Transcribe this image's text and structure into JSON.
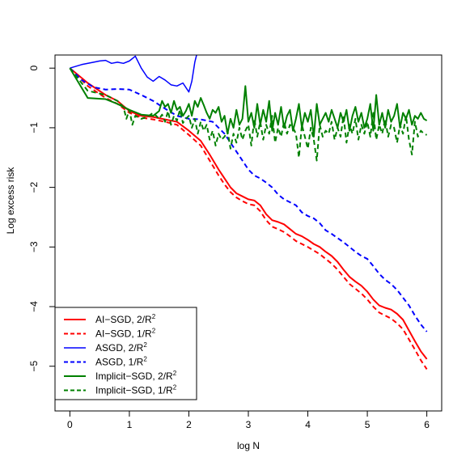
{
  "chart_data": {
    "type": "line",
    "title": "",
    "xlabel": "log N",
    "ylabel": "Log excess risk",
    "xlim": [
      -0.25,
      6.25
    ],
    "ylim": [
      -5.75,
      0.22
    ],
    "xticks": [
      0,
      1,
      2,
      3,
      4,
      5,
      6
    ],
    "xtick_labels": [
      "0",
      "1",
      "2",
      "3",
      "4",
      "5",
      "6"
    ],
    "yticks": [
      0,
      -1,
      -2,
      -3,
      -4,
      -5
    ],
    "ytick_labels": [
      "0",
      "−1",
      "−2",
      "−3",
      "−4",
      "−5"
    ],
    "grid": false,
    "legend_position": "bottom-left",
    "series": [
      {
        "name": "AI−SGD, 2/R",
        "name_sup": "2",
        "color": "#ff0000",
        "dash": "solid",
        "width": 2,
        "x": [
          0,
          0.3,
          0.6,
          0.8,
          1.0,
          1.2,
          1.4,
          1.6,
          1.8,
          2.0,
          2.2,
          2.35,
          2.5,
          2.6,
          2.7,
          2.8,
          2.9,
          3.0,
          3.1,
          3.2,
          3.3,
          3.4,
          3.5,
          3.6,
          3.7,
          3.8,
          3.9,
          4.0,
          4.1,
          4.2,
          4.3,
          4.4,
          4.5,
          4.6,
          4.7,
          4.8,
          4.9,
          5.0,
          5.1,
          5.2,
          5.3,
          5.4,
          5.5,
          5.6,
          5.7,
          5.8,
          5.9,
          6.0
        ],
        "y": [
          0,
          -0.25,
          -0.45,
          -0.55,
          -0.72,
          -0.8,
          -0.82,
          -0.86,
          -0.9,
          -1.05,
          -1.22,
          -1.45,
          -1.7,
          -1.85,
          -2.0,
          -2.1,
          -2.15,
          -2.2,
          -2.22,
          -2.3,
          -2.45,
          -2.55,
          -2.58,
          -2.62,
          -2.7,
          -2.78,
          -2.82,
          -2.88,
          -2.95,
          -3.0,
          -3.08,
          -3.15,
          -3.25,
          -3.38,
          -3.5,
          -3.58,
          -3.65,
          -3.75,
          -3.88,
          -3.98,
          -4.02,
          -4.05,
          -4.12,
          -4.22,
          -4.4,
          -4.58,
          -4.75,
          -4.88
        ]
      },
      {
        "name": "AI−SGD, 1/R",
        "name_sup": "2",
        "color": "#ff0000",
        "dash": "dashed",
        "width": 2,
        "x": [
          0,
          0.3,
          0.6,
          0.8,
          1.0,
          1.2,
          1.4,
          1.6,
          1.8,
          2.0,
          2.2,
          2.35,
          2.5,
          2.6,
          2.7,
          2.8,
          2.9,
          3.0,
          3.1,
          3.2,
          3.3,
          3.4,
          3.5,
          3.6,
          3.7,
          3.8,
          3.9,
          4.0,
          4.1,
          4.2,
          4.3,
          4.4,
          4.5,
          4.6,
          4.7,
          4.8,
          4.9,
          5.0,
          5.1,
          5.2,
          5.3,
          5.4,
          5.5,
          5.6,
          5.7,
          5.8,
          5.9,
          6.0
        ],
        "y": [
          0,
          -0.3,
          -0.5,
          -0.6,
          -0.75,
          -0.83,
          -0.86,
          -0.9,
          -0.95,
          -1.12,
          -1.3,
          -1.55,
          -1.8,
          -1.95,
          -2.08,
          -2.17,
          -2.23,
          -2.28,
          -2.3,
          -2.4,
          -2.55,
          -2.66,
          -2.7,
          -2.75,
          -2.82,
          -2.9,
          -2.95,
          -3.0,
          -3.06,
          -3.12,
          -3.2,
          -3.28,
          -3.38,
          -3.5,
          -3.62,
          -3.7,
          -3.78,
          -3.88,
          -4.0,
          -4.1,
          -4.15,
          -4.2,
          -4.28,
          -4.38,
          -4.55,
          -4.72,
          -4.9,
          -5.05
        ]
      },
      {
        "name": "ASGD, 2/R",
        "name_sup": "2",
        "color": "#0000ff",
        "dash": "solid",
        "width": 1.5,
        "x": [
          0,
          0.2,
          0.4,
          0.5,
          0.6,
          0.7,
          0.8,
          0.9,
          1.0,
          1.1,
          1.2,
          1.3,
          1.4,
          1.5,
          1.6,
          1.7,
          1.8,
          1.9,
          2.0,
          2.05,
          2.1,
          2.15
        ],
        "y": [
          0,
          0.06,
          0.1,
          0.12,
          0.13,
          0.08,
          0.1,
          0.08,
          0.12,
          0.2,
          0.0,
          -0.15,
          -0.22,
          -0.14,
          -0.2,
          -0.28,
          -0.3,
          -0.25,
          -0.4,
          -0.22,
          0.1,
          0.3
        ]
      },
      {
        "name": "ASGD, 1/R",
        "name_sup": "2",
        "color": "#0000ff",
        "dash": "dashed",
        "width": 2,
        "x": [
          0,
          0.2,
          0.4,
          0.6,
          0.8,
          1.0,
          1.2,
          1.4,
          1.6,
          1.8,
          2.0,
          2.2,
          2.4,
          2.5,
          2.6,
          2.7,
          2.8,
          2.9,
          3.0,
          3.1,
          3.2,
          3.3,
          3.4,
          3.5,
          3.6,
          3.7,
          3.8,
          3.9,
          4.0,
          4.1,
          4.2,
          4.3,
          4.4,
          4.5,
          4.6,
          4.7,
          4.8,
          4.9,
          5.0,
          5.1,
          5.2,
          5.3,
          5.4,
          5.5,
          5.6,
          5.7,
          5.8,
          5.9,
          6.0
        ],
        "y": [
          0,
          -0.2,
          -0.32,
          -0.36,
          -0.35,
          -0.36,
          -0.45,
          -0.55,
          -0.68,
          -0.8,
          -0.85,
          -0.86,
          -0.9,
          -1.0,
          -1.1,
          -1.25,
          -1.4,
          -1.55,
          -1.7,
          -1.8,
          -1.85,
          -1.92,
          -2.0,
          -2.12,
          -2.2,
          -2.25,
          -2.3,
          -2.42,
          -2.48,
          -2.52,
          -2.6,
          -2.72,
          -2.78,
          -2.85,
          -2.92,
          -3.0,
          -3.08,
          -3.15,
          -3.2,
          -3.32,
          -3.45,
          -3.55,
          -3.62,
          -3.72,
          -3.85,
          -3.98,
          -4.15,
          -4.3,
          -4.42
        ]
      },
      {
        "name": "Implicit−SGD, 2/R",
        "name_sup": "2",
        "color": "#008000",
        "dash": "solid",
        "width": 2,
        "x": [
          0,
          0.3,
          0.6,
          0.8,
          1.0,
          1.2,
          1.4,
          1.5,
          1.55,
          1.6,
          1.65,
          1.7,
          1.75,
          1.8,
          1.85,
          1.9,
          1.95,
          2.0,
          2.05,
          2.1,
          2.15,
          2.2,
          2.25,
          2.3,
          2.35,
          2.4,
          2.45,
          2.5,
          2.55,
          2.6,
          2.65,
          2.7,
          2.75,
          2.8,
          2.85,
          2.9,
          2.95,
          3.0,
          3.05,
          3.1,
          3.15,
          3.2,
          3.25,
          3.3,
          3.35,
          3.4,
          3.45,
          3.5,
          3.55,
          3.6,
          3.65,
          3.7,
          3.75,
          3.8,
          3.85,
          3.9,
          3.95,
          4.0,
          4.05,
          4.1,
          4.15,
          4.2,
          4.25,
          4.3,
          4.35,
          4.4,
          4.45,
          4.5,
          4.55,
          4.6,
          4.65,
          4.7,
          4.75,
          4.8,
          4.85,
          4.9,
          4.95,
          5.0,
          5.05,
          5.1,
          5.15,
          5.2,
          5.25,
          5.3,
          5.35,
          5.4,
          5.45,
          5.5,
          5.55,
          5.6,
          5.65,
          5.7,
          5.75,
          5.8,
          5.85,
          5.9,
          5.95,
          6.0
        ],
        "y": [
          0,
          -0.5,
          -0.52,
          -0.6,
          -0.7,
          -0.78,
          -0.8,
          -0.72,
          -0.55,
          -0.65,
          -0.6,
          -0.75,
          -0.55,
          -0.7,
          -0.65,
          -0.8,
          -0.72,
          -0.6,
          -0.8,
          -0.55,
          -0.65,
          -0.5,
          -0.62,
          -0.75,
          -0.85,
          -0.7,
          -0.75,
          -0.65,
          -0.9,
          -0.8,
          -1.1,
          -0.85,
          -1.0,
          -0.7,
          -0.95,
          -0.85,
          -0.3,
          -0.9,
          -0.75,
          -1.0,
          -0.6,
          -0.95,
          -0.7,
          -0.9,
          -0.55,
          -1.05,
          -0.75,
          -0.95,
          -0.65,
          -1.0,
          -0.8,
          -0.7,
          -1.05,
          -0.85,
          -0.6,
          -1.0,
          -0.75,
          -0.9,
          -0.7,
          -1.15,
          -0.6,
          -0.95,
          -0.85,
          -0.75,
          -0.9,
          -0.7,
          -0.85,
          -1.0,
          -0.75,
          -0.9,
          -0.7,
          -1.05,
          -0.8,
          -0.65,
          -0.9,
          -0.75,
          -1.0,
          -0.85,
          -0.6,
          -1.05,
          -0.45,
          -0.95,
          -0.75,
          -1.0,
          -0.7,
          -0.9,
          -0.8,
          -0.6,
          -1.0,
          -0.75,
          -0.85,
          -0.7,
          -0.95,
          -0.8,
          -0.85,
          -0.75,
          -0.85,
          -0.88
        ]
      },
      {
        "name": "Implicit−SGD, 1/R",
        "name_sup": "2",
        "color": "#008000",
        "dash": "dashed",
        "width": 2,
        "x": [
          0,
          0.3,
          0.6,
          0.8,
          0.9,
          0.95,
          1.0,
          1.05,
          1.1,
          1.2,
          1.3,
          1.4,
          1.5,
          1.55,
          1.6,
          1.65,
          1.7,
          1.75,
          1.8,
          1.85,
          1.9,
          1.95,
          2.0,
          2.05,
          2.1,
          2.15,
          2.2,
          2.25,
          2.3,
          2.35,
          2.4,
          2.45,
          2.5,
          2.55,
          2.6,
          2.65,
          2.7,
          2.75,
          2.8,
          2.85,
          2.9,
          2.95,
          3.0,
          3.05,
          3.1,
          3.15,
          3.2,
          3.25,
          3.3,
          3.35,
          3.4,
          3.45,
          3.5,
          3.55,
          3.6,
          3.65,
          3.7,
          3.75,
          3.8,
          3.85,
          3.9,
          3.95,
          4.0,
          4.05,
          4.1,
          4.15,
          4.2,
          4.25,
          4.3,
          4.35,
          4.4,
          4.45,
          4.5,
          4.55,
          4.6,
          4.65,
          4.7,
          4.75,
          4.8,
          4.85,
          4.9,
          4.95,
          5.0,
          5.05,
          5.1,
          5.15,
          5.2,
          5.25,
          5.3,
          5.35,
          5.4,
          5.45,
          5.5,
          5.55,
          5.6,
          5.65,
          5.7,
          5.75,
          5.8,
          5.85,
          5.9,
          5.95,
          6.0
        ],
        "y": [
          0,
          -0.38,
          -0.45,
          -0.55,
          -0.65,
          -0.85,
          -0.7,
          -0.95,
          -0.8,
          -0.85,
          -0.82,
          -0.75,
          -0.85,
          -0.78,
          -0.9,
          -0.72,
          -0.95,
          -0.8,
          -0.88,
          -0.7,
          -0.92,
          -0.85,
          -0.8,
          -1.0,
          -0.85,
          -1.1,
          -0.9,
          -1.05,
          -0.95,
          -1.2,
          -1.05,
          -1.3,
          -1.1,
          -1.2,
          -1.15,
          -1.05,
          -1.35,
          -1.1,
          -1.25,
          -1.0,
          -1.2,
          -1.05,
          -0.95,
          -1.3,
          -0.85,
          -1.15,
          -0.9,
          -1.2,
          -0.95,
          -1.1,
          -0.8,
          -1.25,
          -1.0,
          -1.15,
          -0.9,
          -1.1,
          -0.95,
          -1.0,
          -1.1,
          -1.5,
          -0.95,
          -1.15,
          -1.35,
          -1.0,
          -1.2,
          -1.55,
          -0.95,
          -1.15,
          -1.05,
          -1.1,
          -0.9,
          -1.2,
          -1.0,
          -1.15,
          -0.8,
          -1.25,
          -0.95,
          -1.1,
          -0.85,
          -1.2,
          -0.95,
          -1.1,
          -0.9,
          -1.15,
          -0.75,
          -1.2,
          -0.95,
          -1.1,
          -0.85,
          -1.15,
          -0.95,
          -1.0,
          -1.25,
          -0.95,
          -1.1,
          -0.8,
          -1.2,
          -1.45,
          -0.9,
          -1.15,
          -1.05,
          -1.1,
          -1.12
        ]
      }
    ]
  }
}
